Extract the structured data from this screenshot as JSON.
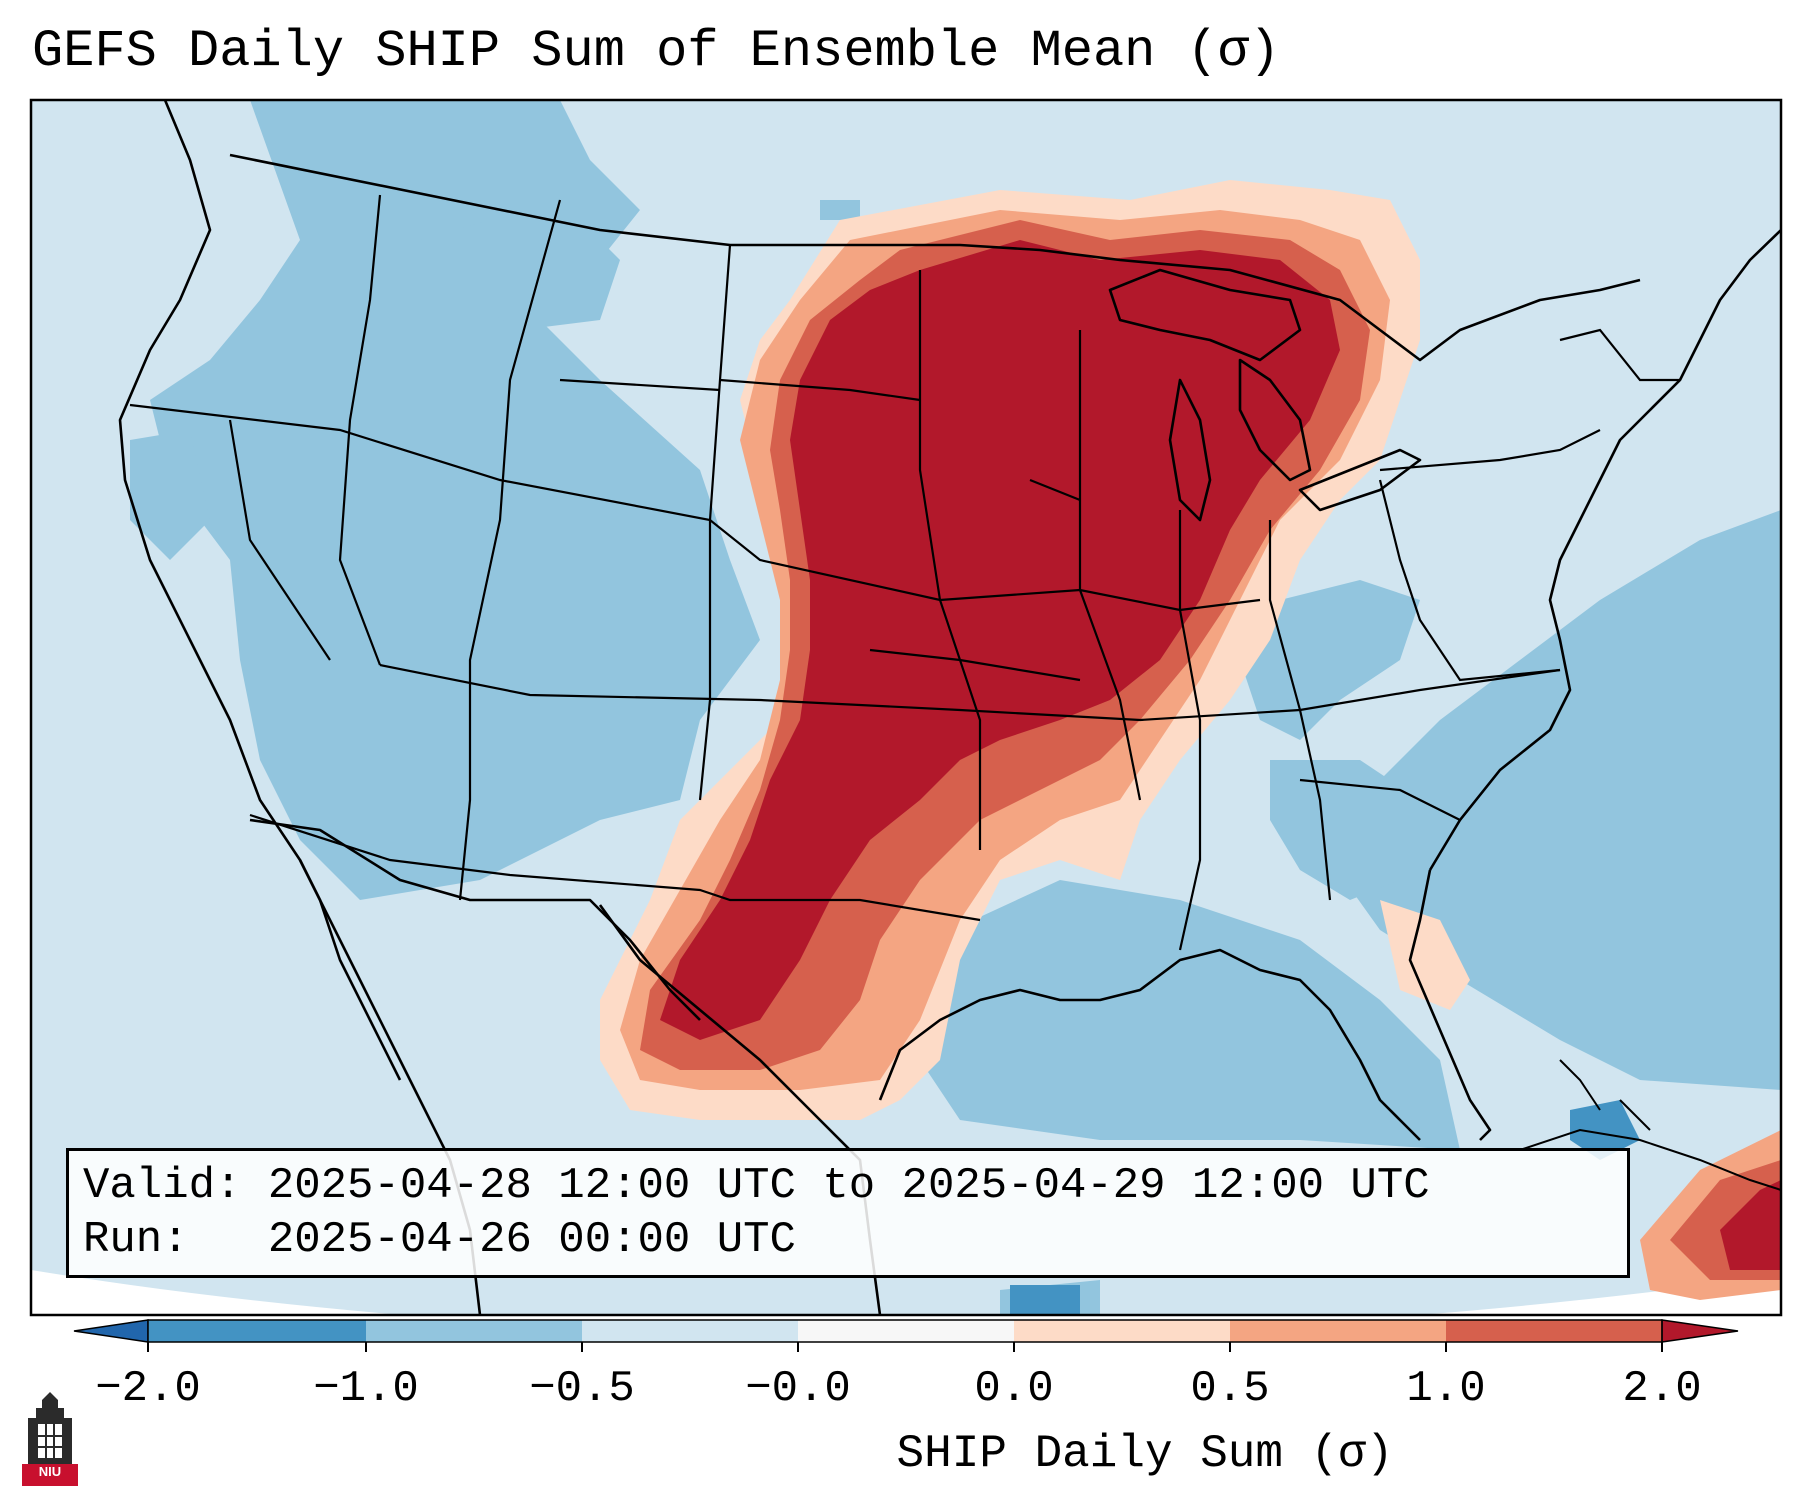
{
  "title": "GEFS Daily SHIP Sum of Ensemble Mean (σ)",
  "info": {
    "valid_label": "Valid:",
    "valid_value": "2025-04-28 12:00 UTC to 2025-04-29 12:00 UTC",
    "run_label": "Run:",
    "run_value": "2025-04-26 00:00 UTC"
  },
  "colorbar": {
    "label": "SHIP Daily Sum (σ)",
    "ticks": [
      "−2.0",
      "−1.0",
      "−0.5",
      "−0.0",
      "0.0",
      "0.5",
      "1.0",
      "2.0"
    ],
    "colors": [
      "#4393c3",
      "#92c5de",
      "#d1e5f0",
      "#f7f7f7",
      "#fddbc7",
      "#f4a582",
      "#d6604d",
      "#b2182b"
    ],
    "under_color": "#2166ac",
    "over_color": "#b2182b"
  },
  "map": {
    "ocean_color": "#d1e5f0",
    "regions": [
      {
        "name": "high-ship-core",
        "level": "2.0",
        "color": "#b2182b"
      },
      {
        "name": "moderate-ship-band",
        "level": "1.0",
        "color": "#d6604d"
      },
      {
        "name": "low-ship-band",
        "level": "0.5",
        "color": "#f4a582"
      },
      {
        "name": "marginal-ship-band",
        "level": "0.0",
        "color": "#fddbc7"
      },
      {
        "name": "below-normal-west",
        "level": "−1.0",
        "color": "#92c5de"
      },
      {
        "name": "below-normal-atlantic",
        "level": "−1.0",
        "color": "#92c5de"
      },
      {
        "name": "below-normal-gulf",
        "level": "−1.0",
        "color": "#92c5de"
      },
      {
        "name": "caribbean-high",
        "level": "2.0",
        "color": "#b2182b"
      }
    ]
  },
  "logo": {
    "text": "NIU",
    "color": "#c8102e"
  }
}
